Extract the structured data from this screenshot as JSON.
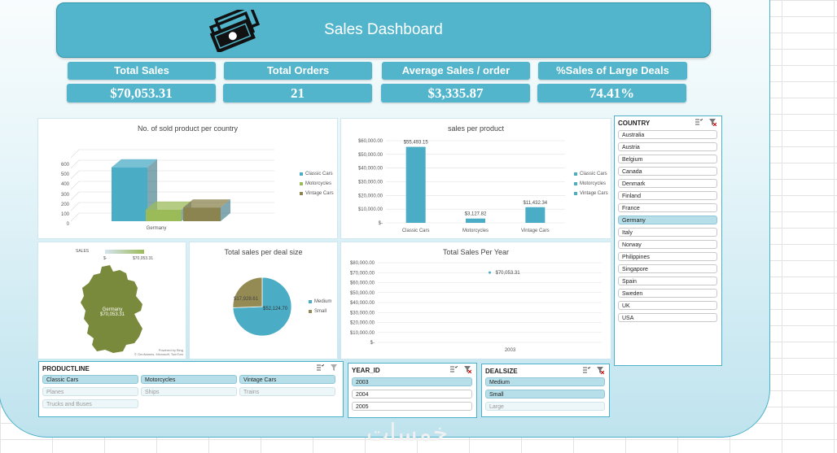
{
  "title": "Sales Dashboard",
  "kpis": [
    {
      "label": "Total Sales",
      "value": "$70,053.31"
    },
    {
      "label": "Total Orders",
      "value": "21"
    },
    {
      "label": "Average Sales / order",
      "value": "$3,335.87"
    },
    {
      "label": "%Sales of Large Deals",
      "value": "74.41%"
    }
  ],
  "charts": {
    "country": {
      "title": "No. of sold product per country",
      "ticks": [
        "600",
        "500",
        "400",
        "300",
        "200",
        "100",
        "0"
      ],
      "category": "Germany",
      "legend": [
        "Classic Cars",
        "Motorcycles",
        "Vintage Cars"
      ]
    },
    "product": {
      "title": "sales per product",
      "ticks": [
        "$60,000.00",
        "$50,000.00",
        "$40,000.00",
        "$30,000.00",
        "$20,000.00",
        "$10,000.00",
        "$-"
      ],
      "legend": [
        "Classic Cars",
        "Motorcycles",
        "Vintage Cars"
      ]
    },
    "map": {
      "legend_title": "SALES",
      "scale_min": "$-",
      "scale_max": "$70,053.31",
      "region_label": "Germany",
      "region_value": "$70,053.31",
      "credit_line1": "Powered by Bing",
      "credit_line2": "© GeoNames, Microsoft, TomTom"
    },
    "deal": {
      "title": "Total sales per deal size",
      "label_medium": "$52,124.70",
      "label_small": "$17,928.61",
      "legend": [
        "Medium",
        "Small"
      ]
    },
    "year": {
      "title": "Total Sales Per Year",
      "ticks": [
        "$80,000.00",
        "$70,000.00",
        "$60,000.00",
        "$50,000.00",
        "$40,000.00",
        "$30,000.00",
        "$20,000.00",
        "$10,000.00",
        "$-"
      ],
      "point_label": "$70,053.31",
      "category": "2003"
    }
  },
  "chart_data": [
    {
      "type": "bar",
      "title": "No. of sold product per country",
      "categories": [
        "Germany"
      ],
      "series": [
        {
          "name": "Classic Cars",
          "values": [
            510
          ]
        },
        {
          "name": "Motorcycles",
          "values": [
            110
          ]
        },
        {
          "name": "Vintage Cars",
          "values": [
            130
          ]
        }
      ],
      "ylim": [
        0,
        600
      ]
    },
    {
      "type": "bar",
      "title": "sales per product",
      "categories": [
        "Classic Cars",
        "Motorcycles",
        "Vintage Cars"
      ],
      "values": [
        55493.15,
        3127.82,
        11432.34
      ],
      "data_labels": [
        "$55,493.15",
        "$3,127.82",
        "$11,432.34"
      ],
      "ylim": [
        0,
        60000
      ]
    },
    {
      "type": "pie",
      "title": "Total sales per deal size",
      "categories": [
        "Medium",
        "Small"
      ],
      "values": [
        52124.7,
        17928.61
      ]
    },
    {
      "type": "line",
      "title": "Total Sales Per Year",
      "x": [
        "2003"
      ],
      "y": [
        70053.31
      ],
      "ylim": [
        0,
        80000
      ]
    }
  ],
  "colors": {
    "accent": "#52b5cb",
    "classic_cars": "#4bacc6",
    "motorcycles": "#9bbb59",
    "vintage_cars": "#8c8450",
    "small": "#948a54",
    "map_fill": "#7a8a3c",
    "selected_item": "#b7dfe9"
  },
  "icons": {
    "title_icon": "money-icon",
    "multiselect": "multi-select-icon",
    "clear_filter": "clear-filter-icon"
  },
  "slicers": {
    "country": {
      "header": "COUNTRY",
      "items": [
        {
          "label": "Australia",
          "state": "normal"
        },
        {
          "label": "Austria",
          "state": "normal"
        },
        {
          "label": "Belgium",
          "state": "normal"
        },
        {
          "label": "Canada",
          "state": "normal"
        },
        {
          "label": "Denmark",
          "state": "normal"
        },
        {
          "label": "Finland",
          "state": "normal"
        },
        {
          "label": "France",
          "state": "normal"
        },
        {
          "label": "Germany",
          "state": "selected"
        },
        {
          "label": "Italy",
          "state": "normal"
        },
        {
          "label": "Norway",
          "state": "normal"
        },
        {
          "label": "Philippines",
          "state": "normal"
        },
        {
          "label": "Singapore",
          "state": "normal"
        },
        {
          "label": "Spain",
          "state": "normal"
        },
        {
          "label": "Sweden",
          "state": "normal"
        },
        {
          "label": "UK",
          "state": "normal"
        },
        {
          "label": "USA",
          "state": "normal"
        }
      ]
    },
    "productline": {
      "header": "PRODUCTLINE",
      "items": [
        {
          "label": "Classic Cars",
          "state": "selected"
        },
        {
          "label": "Motorcycles",
          "state": "selected"
        },
        {
          "label": "Vintage Cars",
          "state": "selected"
        },
        {
          "label": "Planes",
          "state": "dim"
        },
        {
          "label": "Ships",
          "state": "dim"
        },
        {
          "label": "Trains",
          "state": "dim"
        },
        {
          "label": "Trucks and Buses",
          "state": "dim"
        }
      ]
    },
    "year": {
      "header": "YEAR_ID",
      "items": [
        {
          "label": "2003",
          "state": "selected"
        },
        {
          "label": "2004",
          "state": "normal"
        },
        {
          "label": "2005",
          "state": "normal"
        }
      ]
    },
    "dealsize": {
      "header": "DEALSIZE",
      "items": [
        {
          "label": "Medium",
          "state": "selected"
        },
        {
          "label": "Small",
          "state": "selected"
        },
        {
          "label": "Large",
          "state": "dim"
        }
      ]
    }
  },
  "watermark": "خمسات"
}
